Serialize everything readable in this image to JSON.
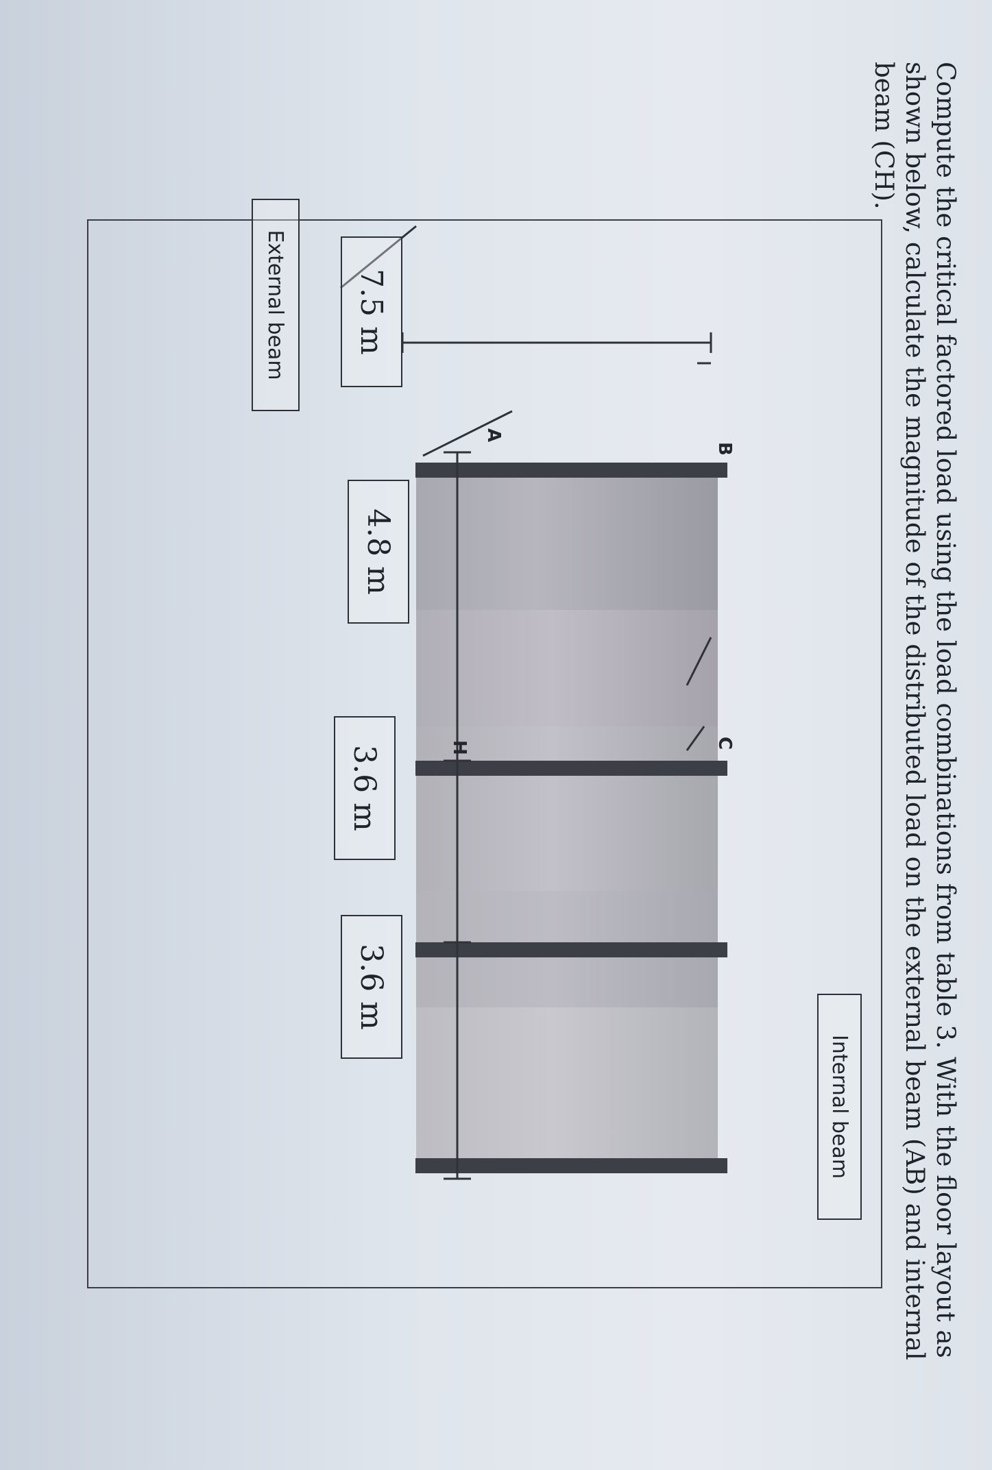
{
  "question": {
    "lines": [
      "Compute the critical factored load using the load combinations from table 3.  With the floor layout as",
      "shown below, calculate the magnitude of the distributed load on the external beam (AB) and internal",
      "beam (CH)."
    ]
  },
  "diagram": {
    "labels": {
      "external_beam": "External beam",
      "internal_beam": "Internal beam"
    },
    "dimensions": {
      "depth": "7.5 m",
      "span_1": "4.8 m",
      "span_2": "3.6 m",
      "span_3": "3.6 m"
    },
    "points": {
      "a": "A",
      "b": "B",
      "c": "C",
      "h": "H"
    }
  }
}
